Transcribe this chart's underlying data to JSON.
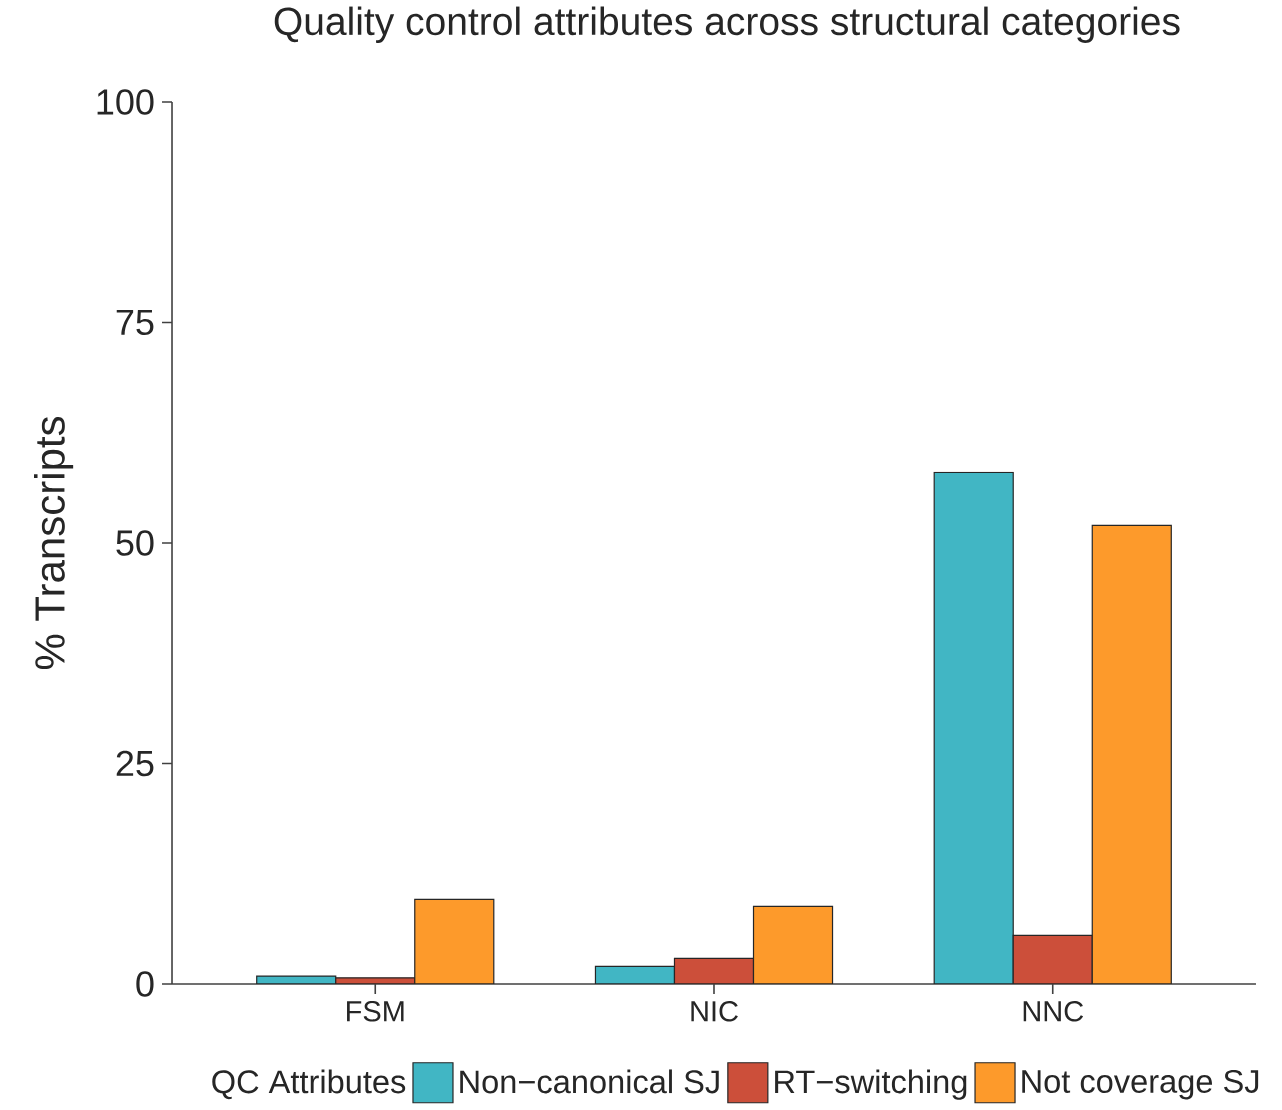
{
  "chart_data": {
    "type": "bar",
    "title": "Quality control attributes across structural categories",
    "ylabel": "% Transcripts",
    "legend_title": "QC Attributes",
    "categories": [
      "FSM",
      "NIC",
      "NNC"
    ],
    "series": [
      {
        "name": "Non−canonical SJ",
        "color": "#41b6c4",
        "values": [
          0.9,
          2.0,
          58
        ]
      },
      {
        "name": "RT−switching",
        "color": "#cc4f3a",
        "values": [
          0.7,
          2.9,
          5.5
        ]
      },
      {
        "name": "Not coverage SJ",
        "color": "#fd9a2b",
        "values": [
          9.6,
          8.8,
          52
        ]
      }
    ],
    "ylim": [
      0,
      100
    ],
    "yticks": [
      0,
      25,
      50,
      75,
      100
    ],
    "legend": "bottom"
  }
}
